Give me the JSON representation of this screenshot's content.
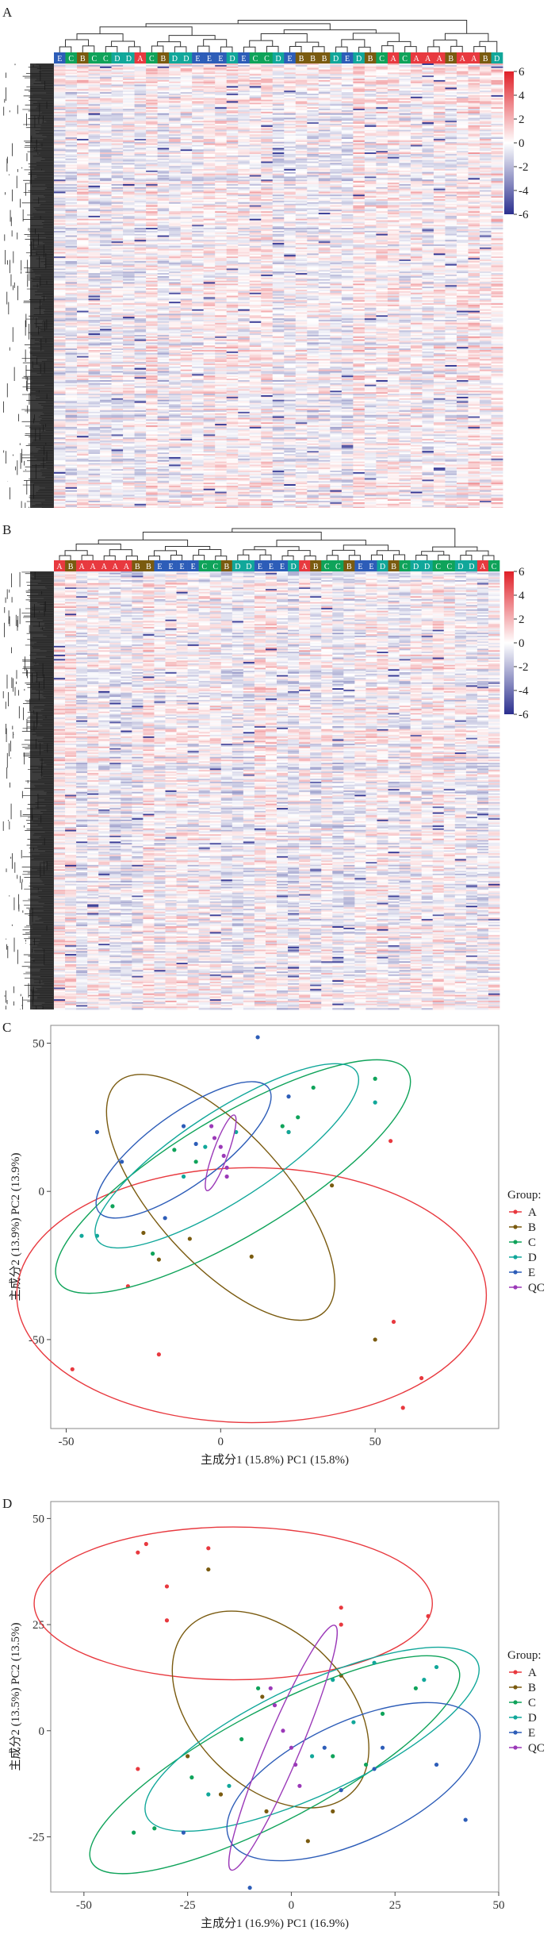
{
  "panels": {
    "a": "A",
    "b": "B",
    "c": "C",
    "d": "D"
  },
  "colors": {
    "A": "#e8393f",
    "B": "#7a5b10",
    "C": "#0fa35a",
    "D": "#11a79a",
    "E": "#2d5db8",
    "QC": "#9b39b8",
    "heat_low": "#2b2f8f",
    "heat_mid": "#ffffff",
    "heat_high": "#e02028"
  },
  "chart_data": [
    {
      "type": "heatmap",
      "panel": "A",
      "column_groups": [
        "E",
        "C",
        "B",
        "C",
        "C",
        "D",
        "D",
        "A",
        "C",
        "B",
        "D",
        "D",
        "E",
        "E",
        "E",
        "D",
        "E",
        "C",
        "C",
        "D",
        "E",
        "B",
        "B",
        "B",
        "D",
        "E",
        "D",
        "B",
        "C",
        "A",
        "C",
        "A",
        "A",
        "A",
        "B",
        "A",
        "A",
        "B",
        "D"
      ],
      "legend_ticks": [
        6,
        4,
        2,
        0,
        -2,
        -4,
        -6
      ],
      "value_range": [
        -6,
        6
      ],
      "row_count": 300
    },
    {
      "type": "heatmap",
      "panel": "B",
      "column_groups": [
        "A",
        "B",
        "A",
        "A",
        "A",
        "A",
        "A",
        "B",
        "B",
        "E",
        "E",
        "E",
        "E",
        "C",
        "C",
        "B",
        "D",
        "D",
        "E",
        "E",
        "E",
        "D",
        "A",
        "B",
        "C",
        "C",
        "B",
        "E",
        "E",
        "D",
        "B",
        "C",
        "D",
        "D",
        "C",
        "C",
        "D",
        "D",
        "A",
        "C"
      ],
      "legend_ticks": [
        6,
        4,
        2,
        0,
        -2,
        -4,
        -6
      ],
      "value_range": [
        -6,
        6
      ],
      "row_count": 300
    },
    {
      "type": "scatter",
      "panel": "C",
      "xlabel": "主成分1 (15.8%) PC1 (15.8%)",
      "ylabel": "主成分2 (13.9%) PC2 (13.9%)",
      "xlim": [
        -55,
        90
      ],
      "ylim": [
        -80,
        56
      ],
      "xticks": [
        -50,
        0,
        50
      ],
      "yticks": [
        50,
        0,
        -50
      ],
      "legend_title": "Group:",
      "series": [
        {
          "name": "A",
          "points": [
            [
              -48,
              -60
            ],
            [
              -20,
              -55
            ],
            [
              -30,
              -32
            ],
            [
              55,
              17
            ],
            [
              56,
              -44
            ],
            [
              65,
              -63
            ],
            [
              59,
              -73
            ]
          ],
          "ellipse": {
            "cx": 10,
            "cy": -35,
            "rx": 76,
            "ry": 43,
            "angle": 0
          }
        },
        {
          "name": "B",
          "points": [
            [
              -25,
              -14
            ],
            [
              -20,
              -23
            ],
            [
              -10,
              -16
            ],
            [
              10,
              -22
            ],
            [
              36,
              2
            ],
            [
              50,
              -50
            ],
            [
              22,
              20
            ]
          ],
          "ellipse": {
            "cx": 0,
            "cy": -2,
            "rx": 50,
            "ry": 22,
            "angle": -48
          }
        },
        {
          "name": "C",
          "points": [
            [
              -35,
              -5
            ],
            [
              -22,
              -21
            ],
            [
              -15,
              14
            ],
            [
              -8,
              10
            ],
            [
              20,
              22
            ],
            [
              25,
              25
            ],
            [
              30,
              35
            ],
            [
              50,
              38
            ]
          ],
          "ellipse": {
            "cx": 4,
            "cy": 5,
            "rx": 66,
            "ry": 20,
            "angle": 31
          }
        },
        {
          "name": "D",
          "points": [
            [
              -45,
              -15
            ],
            [
              -40,
              -15
            ],
            [
              -12,
              5
            ],
            [
              -5,
              15
            ],
            [
              5,
              20
            ],
            [
              22,
              20
            ],
            [
              50,
              30
            ]
          ],
          "ellipse": {
            "cx": 2,
            "cy": 12,
            "rx": 50,
            "ry": 15,
            "angle": 33
          }
        },
        {
          "name": "E",
          "points": [
            [
              -40,
              20
            ],
            [
              -32,
              10
            ],
            [
              -18,
              -9
            ],
            [
              -12,
              22
            ],
            [
              -8,
              16
            ],
            [
              12,
              52
            ],
            [
              22,
              32
            ]
          ],
          "ellipse": {
            "cx": -12,
            "cy": 14,
            "rx": 34,
            "ry": 12,
            "angle": 36
          }
        },
        {
          "name": "QC",
          "points": [
            [
              -3,
              22
            ],
            [
              -2,
              18
            ],
            [
              0,
              15
            ],
            [
              1,
              12
            ],
            [
              2,
              8
            ],
            [
              2,
              5
            ]
          ],
          "ellipse": {
            "cx": 0,
            "cy": 13,
            "rx": 13,
            "ry": 2.5,
            "angle": 70
          }
        }
      ]
    },
    {
      "type": "scatter",
      "panel": "D",
      "xlabel": "主成分1 (16.9%) PC1 (16.9%)",
      "ylabel": "主成分2 (13.5%) PC2 (13.5%)",
      "xlim": [
        -58,
        50
      ],
      "ylim": [
        -38,
        54
      ],
      "xticks": [
        -50,
        -25,
        0,
        25,
        50
      ],
      "yticks": [
        50,
        25,
        0,
        -25
      ],
      "legend_title": "Group:",
      "series": [
        {
          "name": "A",
          "points": [
            [
              -37,
              42
            ],
            [
              -35,
              44
            ],
            [
              -30,
              34
            ],
            [
              -30,
              26
            ],
            [
              -20,
              43
            ],
            [
              -37,
              -9
            ],
            [
              12,
              29
            ],
            [
              12,
              25
            ],
            [
              33,
              27
            ]
          ],
          "ellipse": {
            "cx": -14,
            "cy": 30,
            "rx": 48,
            "ry": 18,
            "angle": 0
          }
        },
        {
          "name": "B",
          "points": [
            [
              -25,
              -6
            ],
            [
              -17,
              -15
            ],
            [
              -7,
              8
            ],
            [
              -6,
              -19
            ],
            [
              10,
              -19
            ],
            [
              12,
              13
            ],
            [
              4,
              -26
            ],
            [
              -20,
              38
            ]
          ],
          "ellipse": {
            "cx": -5,
            "cy": 5,
            "rx": 28,
            "ry": 18,
            "angle": -45
          }
        },
        {
          "name": "C",
          "points": [
            [
              -38,
              -24
            ],
            [
              -33,
              -23
            ],
            [
              -24,
              -11
            ],
            [
              -12,
              -2
            ],
            [
              -8,
              10
            ],
            [
              10,
              -6
            ],
            [
              18,
              -8
            ],
            [
              22,
              4
            ],
            [
              30,
              10
            ]
          ],
          "ellipse": {
            "cx": -4,
            "cy": -8,
            "rx": 50,
            "ry": 13,
            "angle": 28
          }
        },
        {
          "name": "D",
          "points": [
            [
              -20,
              -15
            ],
            [
              -15,
              -13
            ],
            [
              5,
              -6
            ],
            [
              10,
              12
            ],
            [
              15,
              2
            ],
            [
              20,
              16
            ],
            [
              32,
              12
            ],
            [
              35,
              15
            ]
          ],
          "ellipse": {
            "cx": 5,
            "cy": -2,
            "rx": 44,
            "ry": 13,
            "angle": 25
          }
        },
        {
          "name": "E",
          "points": [
            [
              -26,
              -24
            ],
            [
              -10,
              -37
            ],
            [
              8,
              -4
            ],
            [
              12,
              -14
            ],
            [
              20,
              -9
            ],
            [
              22,
              -4
            ],
            [
              35,
              -8
            ],
            [
              42,
              -21
            ]
          ],
          "ellipse": {
            "cx": 15,
            "cy": -12,
            "rx": 33,
            "ry": 14,
            "angle": 25
          }
        },
        {
          "name": "QC",
          "points": [
            [
              -5,
              10
            ],
            [
              -4,
              6
            ],
            [
              -2,
              0
            ],
            [
              0,
              -4
            ],
            [
              1,
              -8
            ],
            [
              2,
              -13
            ]
          ],
          "ellipse": {
            "cx": -2,
            "cy": -4,
            "rx": 32,
            "ry": 4,
            "angle": 67
          }
        }
      ]
    }
  ]
}
